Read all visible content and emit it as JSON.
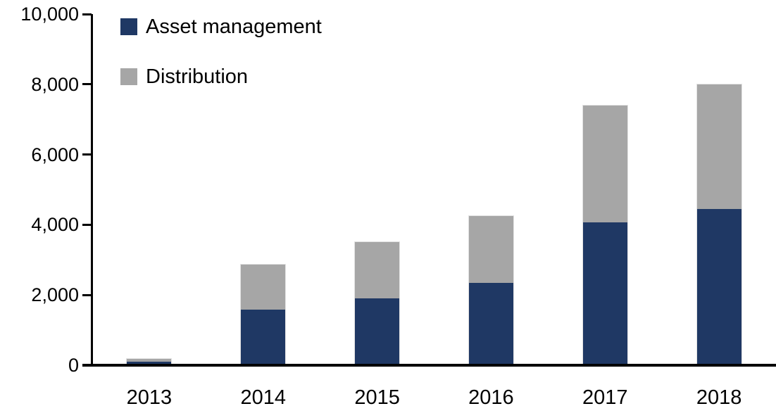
{
  "chart_data": {
    "type": "bar",
    "stacked": true,
    "title": "",
    "xlabel": "",
    "ylabel": "",
    "categories": [
      "2013",
      "2014",
      "2015",
      "2016",
      "2017",
      "2018"
    ],
    "series": [
      {
        "name": "Asset management",
        "color": "#1f3864",
        "values": [
          80,
          1560,
          1890,
          2320,
          4050,
          4430
        ]
      },
      {
        "name": "Distribution",
        "color": "#a6a6a6",
        "values": [
          100,
          1310,
          1620,
          1930,
          3350,
          3570
        ]
      }
    ],
    "totals": [
      180,
      2870,
      3510,
      4250,
      7400,
      8000
    ],
    "ylim": [
      0,
      10000
    ],
    "yticks": {
      "values": [
        0,
        2000,
        4000,
        6000,
        8000,
        10000
      ],
      "labels": [
        "0",
        "2,000",
        "4,000",
        "6,000",
        "8,000",
        "10,000"
      ]
    },
    "grid": false,
    "legend_position": "top-left",
    "background": "#ffffff",
    "axis_color": "#000000"
  }
}
